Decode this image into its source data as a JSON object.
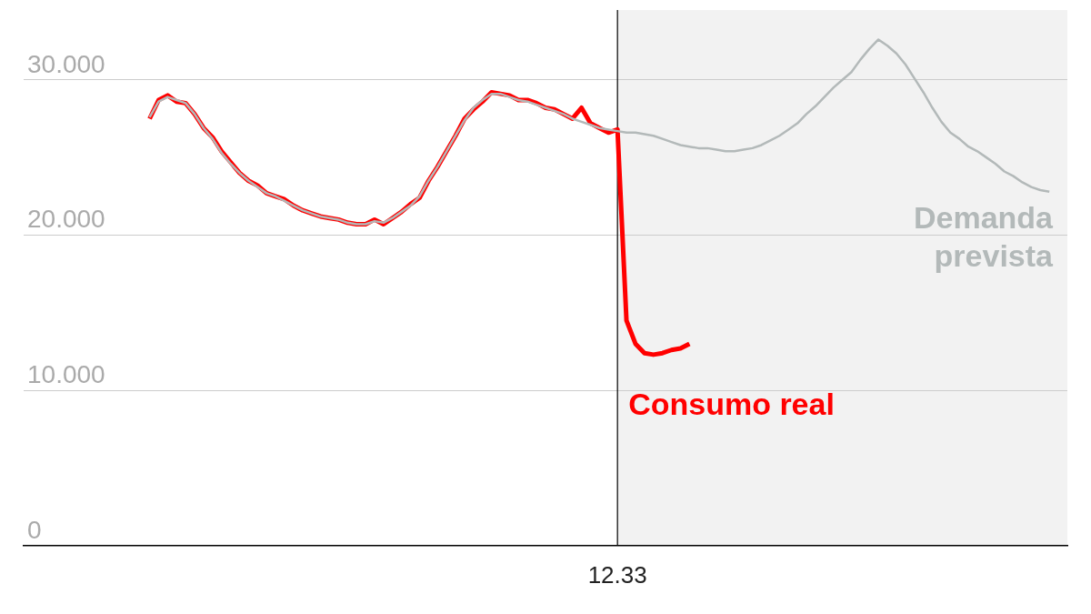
{
  "chart_data": {
    "type": "line",
    "categories": [
      null,
      null,
      null,
      null,
      null,
      null,
      null,
      null,
      null,
      null,
      null,
      null,
      null,
      null,
      null,
      null,
      null,
      null,
      null,
      null,
      null,
      null,
      null,
      null,
      null,
      null,
      null,
      null,
      null,
      null,
      null,
      null,
      null,
      null,
      null,
      null,
      null,
      null,
      null,
      null,
      null,
      null,
      null,
      null,
      null,
      null,
      null,
      null,
      null,
      null,
      null,
      null,
      null,
      null,
      null,
      null,
      null,
      null,
      null,
      null,
      null,
      null,
      null,
      null,
      null,
      null,
      "12.33",
      null,
      null,
      null,
      null,
      null,
      null,
      null,
      null,
      null,
      null,
      null,
      null,
      null,
      null,
      null,
      null,
      null,
      null,
      null,
      null,
      null,
      null,
      null,
      null,
      null,
      null,
      null,
      null,
      null,
      null,
      null,
      null,
      null,
      null,
      null,
      null,
      null,
      null,
      null,
      null,
      null,
      null,
      null,
      null,
      null,
      null,
      null,
      null,
      null,
      null
    ],
    "series": [
      {
        "name": "Demanda prevista",
        "color": "#b3b9b9",
        "values": [
          null,
          null,
          null,
          null,
          null,
          null,
          null,
          null,
          null,
          null,
          null,
          null,
          null,
          null,
          27.6,
          28.6,
          28.9,
          28.7,
          28.5,
          27.8,
          26.9,
          26.2,
          25.3,
          24.6,
          24.0,
          23.5,
          23.1,
          22.7,
          22.5,
          22.2,
          21.9,
          21.6,
          21.4,
          21.2,
          21.1,
          21.0,
          20.8,
          20.7,
          20.7,
          20.9,
          20.8,
          21.1,
          21.5,
          21.9,
          22.5,
          23.5,
          24.4,
          25.4,
          26.4,
          27.4,
          28.2,
          28.7,
          29.1,
          29.1,
          28.9,
          28.7,
          28.6,
          28.4,
          28.2,
          28.0,
          27.8,
          27.5,
          27.3,
          27.1,
          26.9,
          26.8,
          26.7,
          26.6,
          26.6,
          26.5,
          26.4,
          26.2,
          26.0,
          25.8,
          25.7,
          25.6,
          25.6,
          25.5,
          25.4,
          25.4,
          25.5,
          25.6,
          25.8,
          26.1,
          26.4,
          26.8,
          27.2,
          27.8,
          28.3,
          28.9,
          29.5,
          30.0,
          30.5,
          31.3,
          32.0,
          32.6,
          32.2,
          31.7,
          31.0,
          30.1,
          29.2,
          28.2,
          27.3,
          26.6,
          26.2,
          25.7,
          25.4,
          25.0,
          24.6,
          24.1,
          23.8,
          23.4,
          23.1,
          22.9,
          22.8,
          null,
          null
        ]
      },
      {
        "name": "Consumo real",
        "color": "#ff0000",
        "values": [
          null,
          null,
          null,
          null,
          null,
          null,
          null,
          null,
          null,
          null,
          null,
          null,
          null,
          null,
          27.5,
          28.7,
          29.0,
          28.6,
          28.5,
          27.8,
          26.9,
          26.3,
          25.4,
          24.7,
          24.0,
          23.5,
          23.2,
          22.7,
          22.5,
          22.3,
          21.9,
          21.6,
          21.4,
          21.2,
          21.1,
          21.0,
          20.8,
          20.7,
          20.7,
          21.0,
          20.7,
          21.1,
          21.5,
          22.0,
          22.4,
          23.5,
          24.4,
          25.4,
          26.4,
          27.5,
          28.1,
          28.6,
          29.2,
          29.1,
          29.0,
          28.7,
          28.7,
          28.5,
          28.2,
          28.1,
          27.8,
          27.5,
          28.2,
          27.2,
          26.9,
          26.6,
          26.8,
          14.5,
          13.0,
          12.4,
          12.3,
          12.4,
          12.6,
          12.7,
          13.0,
          null,
          null,
          null,
          null,
          null,
          null,
          null,
          null,
          null,
          null,
          null,
          null,
          null,
          null,
          null,
          null,
          null,
          null,
          null,
          null,
          null,
          null,
          null,
          null,
          null,
          null,
          null,
          null,
          null,
          null,
          null,
          null,
          null,
          null,
          null,
          null,
          null,
          null,
          null,
          null,
          null,
          null
        ]
      }
    ],
    "ylim": [
      0,
      34.5
    ],
    "yticks": [
      0,
      {
        "value": 10,
        "label": "10.000"
      },
      {
        "value": 20,
        "label": "20.000"
      },
      {
        "value": 30,
        "label": "30.000"
      }
    ],
    "grid": "y",
    "ref_lines": [
      {
        "axis": "x",
        "value": "12.33",
        "color": "#000000"
      }
    ]
  }
}
